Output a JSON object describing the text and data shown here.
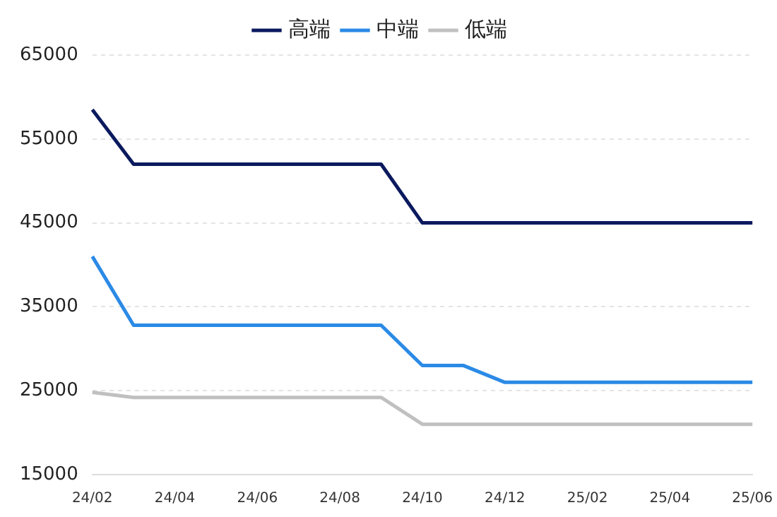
{
  "chart_data": {
    "type": "line",
    "categories": [
      "24/02",
      null,
      "24/04",
      null,
      "24/06",
      null,
      "24/08",
      null,
      "24/10",
      null,
      "24/12",
      null,
      "25/02",
      null,
      "25/04",
      null,
      "25/06"
    ],
    "series": [
      {
        "name": "高端",
        "color": "#0b1a5e",
        "values": [
          58500,
          52000,
          52000,
          52000,
          52000,
          52000,
          52000,
          52000,
          45000,
          45000,
          45000,
          45000,
          45000,
          45000,
          45000,
          45000,
          45000
        ]
      },
      {
        "name": "中端",
        "color": "#2b8ae6",
        "values": [
          41000,
          32800,
          32800,
          32800,
          32800,
          32800,
          32800,
          32800,
          28000,
          28000,
          26000,
          26000,
          26000,
          26000,
          26000,
          26000,
          26000
        ]
      },
      {
        "name": "低端",
        "color": "#c0c0c0",
        "values": [
          24800,
          24200,
          24200,
          24200,
          24200,
          24200,
          24200,
          24200,
          21000,
          21000,
          21000,
          21000,
          21000,
          21000,
          21000,
          21000,
          21000
        ]
      }
    ],
    "ylim": [
      15000,
      65000
    ],
    "yticks": [
      15000,
      25000,
      35000,
      45000,
      55000,
      65000
    ],
    "grid": "y",
    "legend": "top",
    "marker": "none",
    "line_style": "solid"
  }
}
